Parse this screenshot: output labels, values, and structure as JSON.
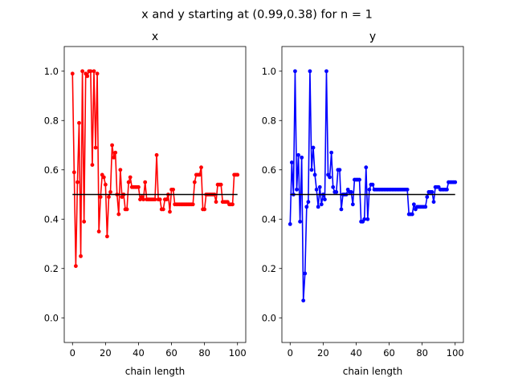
{
  "figure": {
    "suptitle": "x and y starting at (0.99,0.38) for n = 1"
  },
  "chart_data": [
    {
      "type": "line",
      "title": "x",
      "xlabel": "chain length",
      "ylabel": "",
      "xlim": [
        -5,
        105
      ],
      "ylim": [
        -0.1,
        1.1
      ],
      "xticks": [
        0,
        20,
        40,
        60,
        80,
        100
      ],
      "yticks": [
        0.0,
        0.2,
        0.4,
        0.6,
        0.8,
        1.0
      ],
      "grid": false,
      "reference_line": {
        "x": [
          0,
          100
        ],
        "y": 0.5,
        "color": "#000000"
      },
      "series": [
        {
          "color": "#ff0000",
          "marker": "circle",
          "x": [
            0,
            1,
            2,
            3,
            4,
            5,
            6,
            7,
            8,
            9,
            10,
            11,
            12,
            13,
            14,
            15,
            16,
            17,
            18,
            19,
            20,
            21,
            22,
            23,
            24,
            25,
            26,
            27,
            28,
            29,
            30,
            31,
            32,
            33,
            34,
            35,
            36,
            37,
            38,
            39,
            40,
            41,
            42,
            43,
            44,
            45,
            46,
            47,
            48,
            49,
            50,
            51,
            52,
            53,
            54,
            55,
            56,
            57,
            58,
            59,
            60,
            61,
            62,
            63,
            64,
            65,
            66,
            67,
            68,
            69,
            70,
            71,
            72,
            73,
            74,
            75,
            76,
            77,
            78,
            79,
            80,
            81,
            82,
            83,
            84,
            85,
            86,
            87,
            88,
            89,
            90,
            91,
            92,
            93,
            94,
            95,
            96,
            97,
            98,
            99,
            100
          ],
          "values": [
            0.99,
            0.59,
            0.21,
            0.55,
            0.79,
            0.25,
            1.0,
            0.39,
            0.99,
            0.98,
            1.0,
            1.0,
            0.62,
            1.0,
            0.69,
            0.99,
            0.35,
            0.49,
            0.58,
            0.57,
            0.54,
            0.33,
            0.49,
            0.51,
            0.7,
            0.65,
            0.67,
            0.5,
            0.42,
            0.6,
            0.49,
            0.5,
            0.44,
            0.44,
            0.55,
            0.57,
            0.53,
            0.53,
            0.53,
            0.53,
            0.53,
            0.48,
            0.49,
            0.48,
            0.55,
            0.48,
            0.48,
            0.48,
            0.48,
            0.48,
            0.48,
            0.66,
            0.48,
            0.48,
            0.44,
            0.44,
            0.48,
            0.48,
            0.5,
            0.43,
            0.52,
            0.52,
            0.46,
            0.46,
            0.46,
            0.46,
            0.46,
            0.46,
            0.46,
            0.46,
            0.46,
            0.46,
            0.46,
            0.46,
            0.55,
            0.58,
            0.58,
            0.58,
            0.61,
            0.44,
            0.44,
            0.5,
            0.5,
            0.5,
            0.5,
            0.5,
            0.5,
            0.47,
            0.54,
            0.54,
            0.54,
            0.47,
            0.47,
            0.47,
            0.47,
            0.46,
            0.46,
            0.46,
            0.58,
            0.58,
            0.58
          ]
        }
      ]
    },
    {
      "type": "line",
      "title": "y",
      "xlabel": "chain length",
      "ylabel": "",
      "xlim": [
        -5,
        105
      ],
      "ylim": [
        -0.1,
        1.1
      ],
      "xticks": [
        0,
        20,
        40,
        60,
        80,
        100
      ],
      "yticks": [
        0.0,
        0.2,
        0.4,
        0.6,
        0.8,
        1.0
      ],
      "grid": false,
      "reference_line": {
        "x": [
          0,
          100
        ],
        "y": 0.5,
        "color": "#000000"
      },
      "series": [
        {
          "color": "#0000ff",
          "marker": "circle",
          "x": [
            0,
            1,
            2,
            3,
            4,
            5,
            6,
            7,
            8,
            9,
            10,
            11,
            12,
            13,
            14,
            15,
            16,
            17,
            18,
            19,
            20,
            21,
            22,
            23,
            24,
            25,
            26,
            27,
            28,
            29,
            30,
            31,
            32,
            33,
            34,
            35,
            36,
            37,
            38,
            39,
            40,
            41,
            42,
            43,
            44,
            45,
            46,
            47,
            48,
            49,
            50,
            51,
            52,
            53,
            54,
            55,
            56,
            57,
            58,
            59,
            60,
            61,
            62,
            63,
            64,
            65,
            66,
            67,
            68,
            69,
            70,
            71,
            72,
            73,
            74,
            75,
            76,
            77,
            78,
            79,
            80,
            81,
            82,
            83,
            84,
            85,
            86,
            87,
            88,
            89,
            90,
            91,
            92,
            93,
            94,
            95,
            96,
            97,
            98,
            99,
            100
          ],
          "values": [
            0.38,
            0.63,
            0.5,
            1.0,
            0.52,
            0.66,
            0.39,
            0.65,
            0.07,
            0.18,
            0.45,
            0.47,
            1.0,
            0.6,
            0.69,
            0.58,
            0.52,
            0.45,
            0.53,
            0.46,
            0.5,
            0.48,
            1.0,
            0.58,
            0.57,
            0.67,
            0.53,
            0.51,
            0.51,
            0.6,
            0.6,
            0.44,
            0.5,
            0.5,
            0.5,
            0.52,
            0.51,
            0.51,
            0.46,
            0.56,
            0.56,
            0.56,
            0.56,
            0.39,
            0.39,
            0.4,
            0.61,
            0.4,
            0.52,
            0.54,
            0.54,
            0.52,
            0.52,
            0.52,
            0.52,
            0.52,
            0.52,
            0.52,
            0.52,
            0.52,
            0.52,
            0.52,
            0.52,
            0.52,
            0.52,
            0.52,
            0.52,
            0.52,
            0.52,
            0.52,
            0.52,
            0.52,
            0.42,
            0.42,
            0.42,
            0.46,
            0.44,
            0.45,
            0.45,
            0.45,
            0.45,
            0.45,
            0.45,
            0.49,
            0.51,
            0.51,
            0.51,
            0.47,
            0.53,
            0.53,
            0.53,
            0.52,
            0.52,
            0.52,
            0.52,
            0.52,
            0.55,
            0.55,
            0.55,
            0.55,
            0.55
          ]
        }
      ]
    }
  ]
}
